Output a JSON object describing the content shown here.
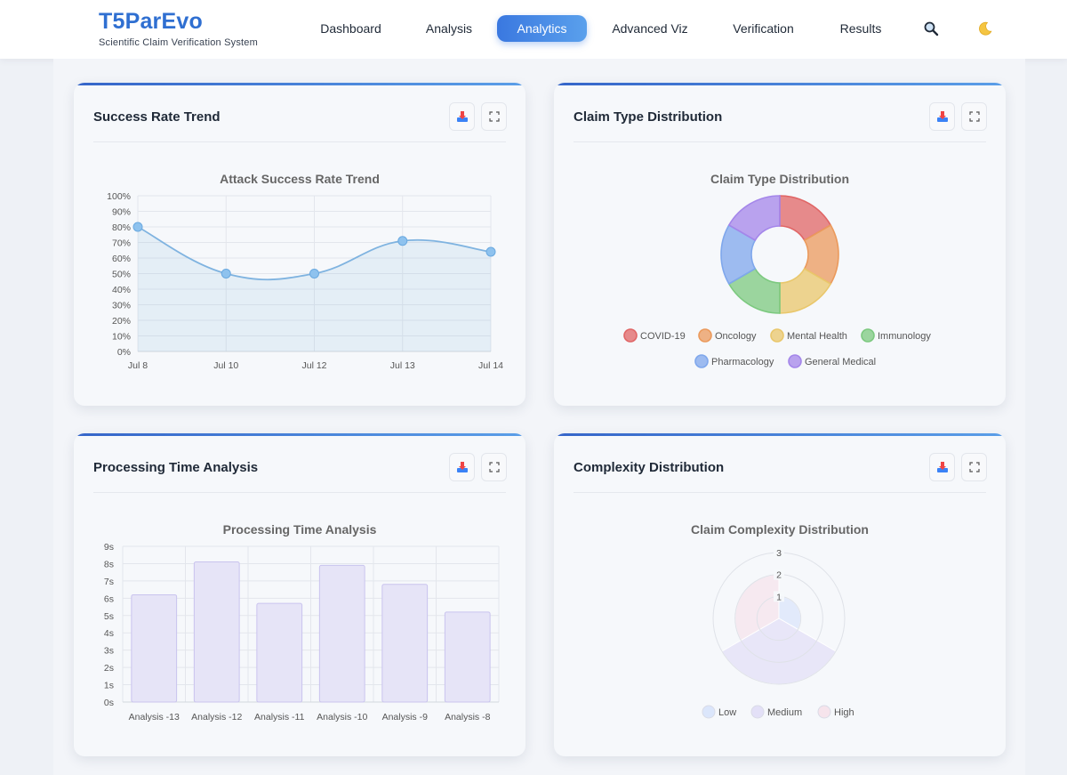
{
  "app": {
    "title": "T5ParEvo",
    "subtitle": "Scientific Claim Verification System"
  },
  "nav": {
    "items": [
      {
        "label": "Dashboard",
        "active": false
      },
      {
        "label": "Analysis",
        "active": false
      },
      {
        "label": "Analytics",
        "active": true
      },
      {
        "label": "Advanced Viz",
        "active": false
      },
      {
        "label": "Verification",
        "active": false
      },
      {
        "label": "Results",
        "active": false
      }
    ],
    "search_icon": "search-icon",
    "theme_icon": "moon-icon"
  },
  "cards": {
    "success": {
      "title": "Success Rate Trend"
    },
    "claimtype": {
      "title": "Claim Type Distribution"
    },
    "processing": {
      "title": "Processing Time Analysis"
    },
    "complexity": {
      "title": "Complexity Distribution"
    },
    "actions": {
      "download_icon": "download-icon",
      "expand_icon": "expand-icon"
    }
  },
  "colors": {
    "accent": "#3a78e0",
    "line": "#7fb3e0",
    "bar_fill": "#e6e4f7",
    "bar_stroke": "#c9c3ee"
  },
  "chart_data": [
    {
      "id": "success",
      "type": "line",
      "title": "Attack Success Rate Trend",
      "x": [
        "Jul 8",
        "Jul 10",
        "Jul 12",
        "Jul 13",
        "Jul 14"
      ],
      "values": [
        80,
        50,
        50,
        71,
        64
      ],
      "ylim": [
        0,
        100
      ],
      "yticks": [
        "0%",
        "10%",
        "20%",
        "30%",
        "40%",
        "50%",
        "60%",
        "70%",
        "80%",
        "90%",
        "100%"
      ],
      "grid": true,
      "fill": true
    },
    {
      "id": "claimtype",
      "type": "pie",
      "donut": true,
      "title": "Claim Type Distribution",
      "labels": [
        "COVID-19",
        "Oncology",
        "Mental Health",
        "Immunology",
        "Pharmacology",
        "General Medical"
      ],
      "values": [
        1,
        1,
        1,
        1,
        1,
        1
      ],
      "colors": [
        "#e06666",
        "#eb9a5c",
        "#e9c76b",
        "#7cc97f",
        "#7fa7ec",
        "#a486ea"
      ],
      "legend": "bottom"
    },
    {
      "id": "processing",
      "type": "bar",
      "title": "Processing Time Analysis",
      "categories": [
        "Analysis -13",
        "Analysis -12",
        "Analysis -11",
        "Analysis -10",
        "Analysis -9",
        "Analysis -8"
      ],
      "values": [
        6.2,
        8.1,
        5.7,
        7.9,
        6.8,
        5.2
      ],
      "ylim": [
        0,
        9
      ],
      "yticks": [
        "0s",
        "1s",
        "2s",
        "3s",
        "4s",
        "5s",
        "6s",
        "7s",
        "8s",
        "9s"
      ],
      "grid": true
    },
    {
      "id": "complexity",
      "type": "polarArea",
      "title": "Claim Complexity Distribution",
      "labels": [
        "Low",
        "Medium",
        "High"
      ],
      "values": [
        1,
        3,
        2
      ],
      "rticks": [
        "1",
        "2",
        "3"
      ],
      "rmax": 3,
      "colors": [
        "#dbe6fb",
        "#e3e0f7",
        "#f6e4ec"
      ],
      "legend": "bottom"
    }
  ]
}
